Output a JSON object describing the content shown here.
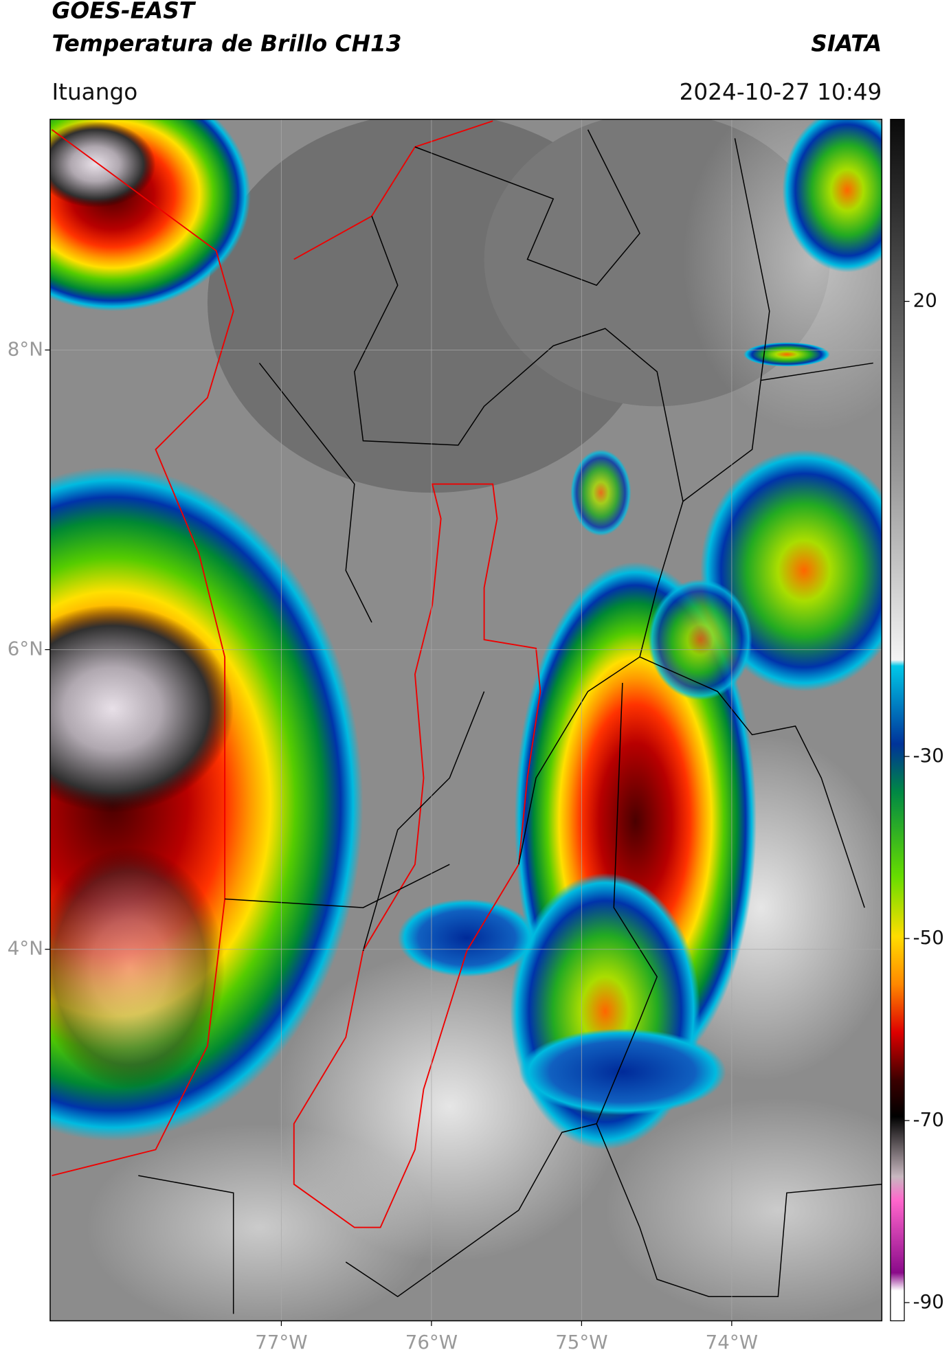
{
  "header": {
    "title": "GOES-EAST",
    "subtitle": "Temperatura de Brillo CH13",
    "source": "SIATA",
    "location": "Ituango",
    "timestamp": "2024-10-27 10:49"
  },
  "map": {
    "xlim": [
      -78.54,
      -73.0
    ],
    "ylim": [
      1.52,
      9.54
    ],
    "grid": true,
    "xticks": [
      {
        "value": -77,
        "label": "77°W"
      },
      {
        "value": -76,
        "label": "76°W"
      },
      {
        "value": -75,
        "label": "75°W"
      },
      {
        "value": -74,
        "label": "74°W"
      }
    ],
    "yticks": [
      {
        "value": 8,
        "label": "8°N"
      },
      {
        "value": 6,
        "label": "6°N"
      },
      {
        "value": 4,
        "label": "4°N"
      }
    ]
  },
  "colorbar": {
    "lim": [
      -92,
      40
    ],
    "ticks": [
      20,
      -30,
      -50,
      -70,
      -90
    ]
  }
}
